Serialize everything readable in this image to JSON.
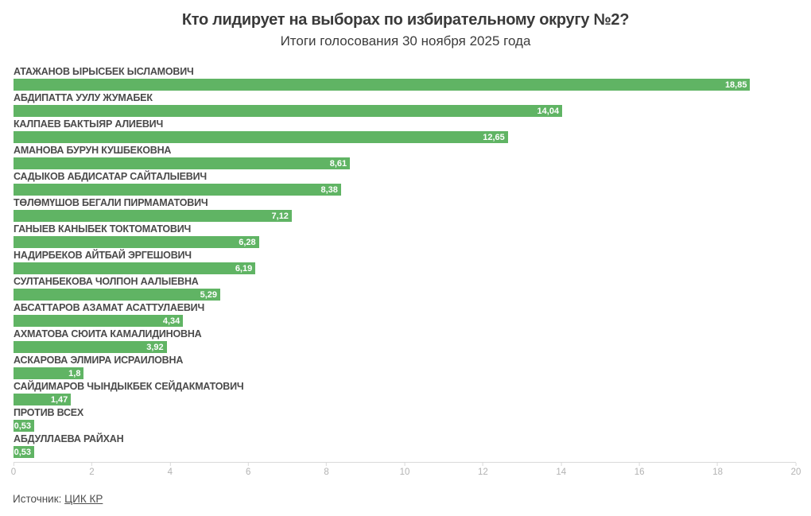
{
  "header": {
    "title": "Кто лидирует на выборах по избирательному округу №2?",
    "subtitle": "Итоги голосования 30 ноября 2025 года"
  },
  "footer": {
    "source_label": "Источник:",
    "source_link": "ЦИК КР"
  },
  "colors": {
    "bar": "#60b464",
    "bar_value_text": "#ffffff",
    "category_label": "#4a4a4a",
    "title_text": "#3a3a3a",
    "tick_text": "#b3b3b3",
    "axis_line": "#d9d9d9"
  },
  "chart_data": {
    "type": "bar",
    "orientation": "horizontal",
    "title": "Кто лидирует на выборах по избирательному округу №2?",
    "subtitle": "Итоги голосования 30 ноября 2025 года",
    "categories": [
      "АТАЖАНОВ ЫРЫСБЕК ЫСЛАМОВИЧ",
      "АБДИПАТТА УУЛУ ЖУМАБЕК",
      "КАЛПАЕВ БАКТЫЯР АЛИЕВИЧ",
      "АМАНОВА БУРУН КУШБЕКОВНА",
      "САДЫКОВ АБДИСАТАР САЙТАЛЫЕВИЧ",
      "ТӨЛӨМҮШОВ БЕГАЛИ ПИРМАМАТОВИЧ",
      "ГАНЫЕВ КАНЫБЕК ТОКТОМАТОВИЧ",
      "НАДИРБЕКОВ АЙТБАЙ ЭРГЕШОВИЧ",
      "СУЛТАНБЕКОВА ЧОЛПОН ААЛЫЕВНА",
      "АБСАТТАРОВ АЗАМАТ АСАТТУЛАЕВИЧ",
      "АХМАТОВА СЮИТА КАМАЛИДИНОВНА",
      "АСКАРОВА ЭЛМИРА ИСРАИЛОВНА",
      "САЙДИМАРОВ ЧЫНДЫКБЕК СЕЙДАКМАТОВИЧ",
      "ПРОТИВ ВСЕХ",
      "АБДУЛЛАЕВА РАЙХАН"
    ],
    "values": [
      18.85,
      14.04,
      12.65,
      8.61,
      8.38,
      7.12,
      6.28,
      6.19,
      5.29,
      4.34,
      3.92,
      1.8,
      1.47,
      0.53,
      0.53
    ],
    "display_values": [
      "18,85",
      "14,04",
      "12,65",
      "8,61",
      "8,38",
      "7,12",
      "6,28",
      "6,19",
      "5,29",
      "4,34",
      "3,92",
      "1,8",
      "1,47",
      "0,53",
      "0,53"
    ],
    "xlabel": "",
    "ylabel": "",
    "xlim": [
      0,
      20
    ],
    "x_ticks": [
      0,
      2,
      4,
      6,
      8,
      10,
      12,
      14,
      16,
      18,
      20
    ],
    "grid": false,
    "legend": "none",
    "value_label_position": "inside-end"
  }
}
